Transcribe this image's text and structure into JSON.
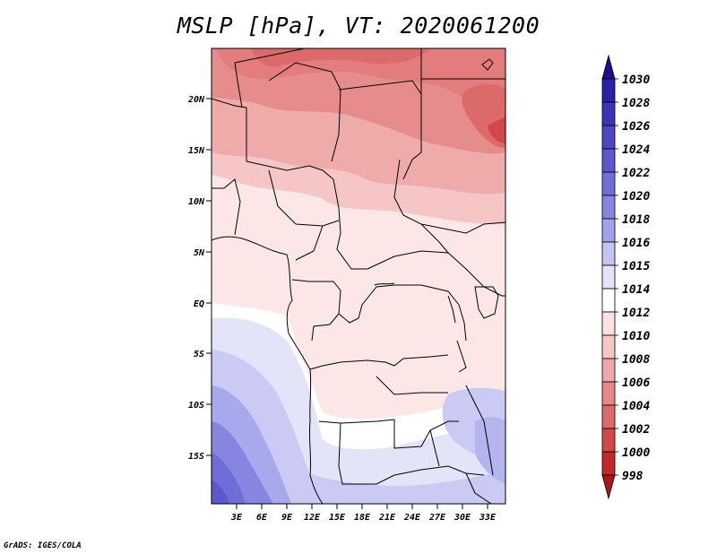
{
  "title": "MSLP [hPa], VT: 2020061200",
  "credit": "GrADS: IGES/COLA",
  "lat_labels": [
    "20N",
    "15N",
    "10N",
    "5N",
    "EQ",
    "5S",
    "10S",
    "15S"
  ],
  "lon_labels": [
    "3E",
    "6E",
    "9E",
    "12E",
    "15E",
    "18E",
    "21E",
    "24E",
    "27E",
    "30E",
    "33E"
  ],
  "colorbar": {
    "labels": [
      "1030",
      "1028",
      "1026",
      "1024",
      "1022",
      "1020",
      "1018",
      "1016",
      "1015",
      "1014",
      "1012",
      "1010",
      "1008",
      "1006",
      "1004",
      "1002",
      "1000",
      "998"
    ],
    "colors": [
      "#1a0f8c",
      "#2a22a6",
      "#3a34b8",
      "#4a46c4",
      "#5a58cc",
      "#6e6ed6",
      "#8686e0",
      "#a2a2ea",
      "#c4c4f2",
      "#e2e2f8",
      "#ffffff",
      "#fbe2e2",
      "#f6c6c6",
      "#efa8a8",
      "#e68888",
      "#dd6a6a",
      "#d24848",
      "#c22a2a",
      "#a81818"
    ]
  }
}
